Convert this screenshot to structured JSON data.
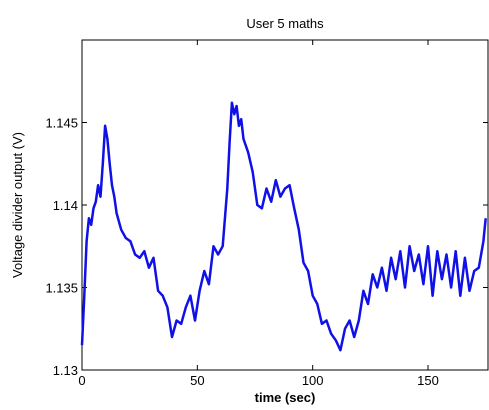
{
  "chart_data": {
    "type": "line",
    "title": "User 5 maths",
    "xlabel": "time (sec)",
    "ylabel": "Voltage divider output (V)",
    "xlim": [
      0,
      176
    ],
    "ylim": [
      1.13,
      1.15
    ],
    "x_ticks": [
      0,
      50,
      100,
      150
    ],
    "x_tick_labels": [
      "0",
      "50",
      "100",
      "150"
    ],
    "y_ticks": [
      1.13,
      1.135,
      1.14,
      1.145
    ],
    "y_tick_labels": [
      "1.13",
      "1.135",
      "1.14",
      "1.145"
    ],
    "grid": false,
    "line_color": "#1010e8",
    "series": [
      {
        "x": [
          0,
          1,
          2,
          3,
          4,
          5,
          6,
          7,
          8,
          9,
          10,
          11,
          12,
          13,
          14,
          15,
          17,
          19,
          21,
          23,
          25,
          27,
          29,
          31,
          33,
          35,
          37,
          39,
          41,
          43,
          45,
          47,
          49,
          51,
          53,
          55,
          57,
          59,
          61,
          63,
          64,
          65,
          66,
          67,
          68,
          69,
          70,
          72,
          74,
          76,
          78,
          80,
          82,
          84,
          86,
          88,
          90,
          92,
          94,
          96,
          98,
          100,
          102,
          104,
          106,
          108,
          110,
          112,
          114,
          116,
          118,
          120,
          122,
          124,
          126,
          128,
          130,
          132,
          134,
          136,
          138,
          140,
          142,
          144,
          146,
          148,
          150,
          152,
          154,
          156,
          158,
          160,
          162,
          164,
          166,
          168,
          170,
          172,
          174,
          175
        ],
        "y": [
          1.1315,
          1.1345,
          1.1378,
          1.1392,
          1.1388,
          1.1398,
          1.1402,
          1.1412,
          1.1405,
          1.1425,
          1.1448,
          1.144,
          1.1425,
          1.1412,
          1.1405,
          1.1395,
          1.1385,
          1.138,
          1.1378,
          1.137,
          1.1368,
          1.1372,
          1.1362,
          1.1368,
          1.1348,
          1.1345,
          1.1338,
          1.132,
          1.133,
          1.1328,
          1.1338,
          1.1345,
          1.133,
          1.1348,
          1.136,
          1.1352,
          1.1375,
          1.137,
          1.1375,
          1.141,
          1.1438,
          1.1462,
          1.1455,
          1.146,
          1.1448,
          1.1452,
          1.144,
          1.1432,
          1.142,
          1.14,
          1.1398,
          1.141,
          1.1402,
          1.1415,
          1.1405,
          1.141,
          1.1412,
          1.1398,
          1.1385,
          1.1365,
          1.136,
          1.1345,
          1.134,
          1.1328,
          1.133,
          1.1322,
          1.1318,
          1.1312,
          1.1325,
          1.133,
          1.132,
          1.133,
          1.1348,
          1.134,
          1.1358,
          1.135,
          1.1362,
          1.1348,
          1.1368,
          1.1355,
          1.1372,
          1.135,
          1.1375,
          1.136,
          1.137,
          1.1352,
          1.1375,
          1.1345,
          1.1372,
          1.1355,
          1.137,
          1.135,
          1.1372,
          1.1345,
          1.1368,
          1.1348,
          1.136,
          1.1362,
          1.1378,
          1.1392
        ]
      }
    ]
  }
}
